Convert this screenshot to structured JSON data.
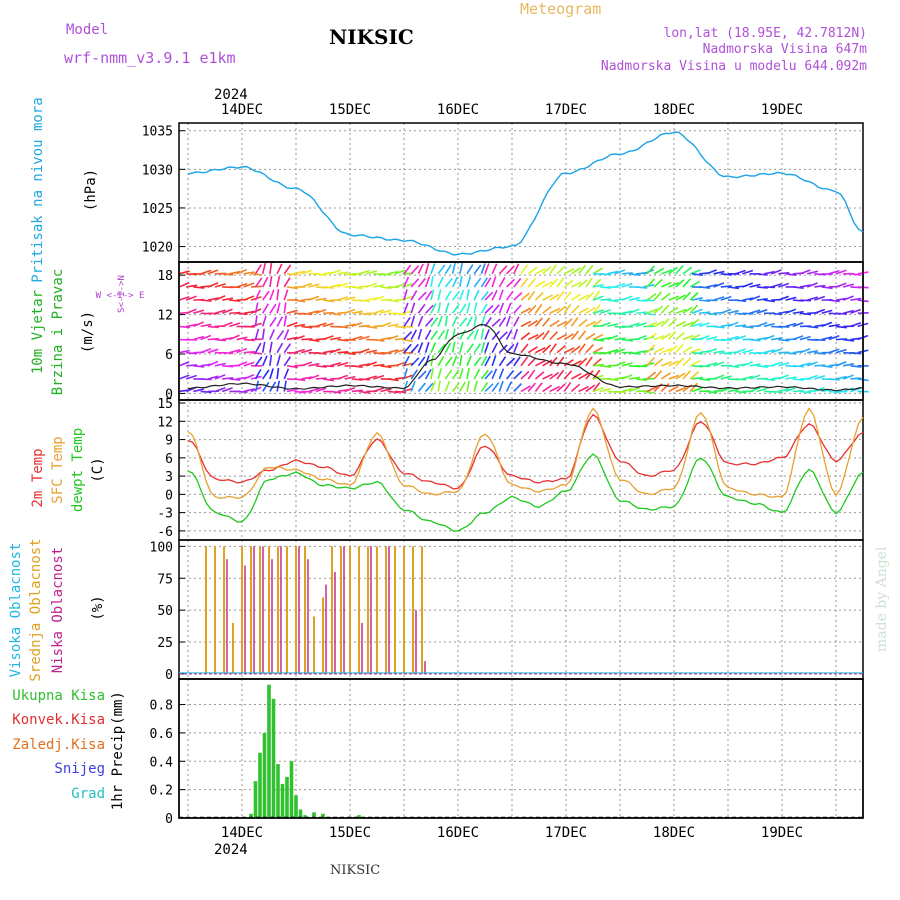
{
  "header": {
    "model_label": "Model",
    "model_name": "wrf-nmm_v3.9.1 e1km",
    "station": "NIKSIC",
    "meteogram": "Meteogram",
    "location": "lon,lat (18.95E, 42.7812N)",
    "altitude": "Nadmorska Visina 647m",
    "model_altitude": "Nadmorska Visina u modelu 644.092m",
    "year": "2024",
    "footer_station": "NIKSIC",
    "watermark": "made by Angel"
  },
  "colors": {
    "pressure": "#1aa3e8",
    "temp2m": "#e83030",
    "sfc_temp": "#e8a030",
    "dewpt": "#20c820",
    "cloud_high": "#20b8e0",
    "cloud_mid": "#e0a020",
    "cloud_low": "#c0208a",
    "precip_total": "#30c030",
    "precip_conv": "#e03030",
    "precip_snow": "#4040e0",
    "precip_grad": "#20c0c0",
    "precip_zaledj": "#e07020",
    "wind_label": "#20b020",
    "wind_dir_label": "#b040d0"
  },
  "chart_data": [
    {
      "type": "line",
      "name": "pressure",
      "ylabel_left": "Pritisak na nivou mora",
      "ylabel_unit": "(hPa)",
      "yticks": [
        1020,
        1025,
        1030,
        1035
      ],
      "ylim": [
        1018,
        1036
      ],
      "x_days": [
        "14DEC",
        "15DEC",
        "16DEC",
        "17DEC",
        "18DEC",
        "19DEC"
      ],
      "x_hours": [
        -12,
        0,
        12,
        24,
        36,
        48,
        60,
        72,
        84,
        96,
        108,
        120,
        132,
        138
      ],
      "values": [
        1029.5,
        1030.3,
        1027.5,
        1021.5,
        1020.8,
        1019.0,
        1020.0,
        1029.5,
        1032.0,
        1034.8,
        1029.0,
        1029.5,
        1027.2,
        1021.8
      ]
    },
    {
      "type": "line",
      "name": "wind",
      "ylabel_left1": "10m Vjetar",
      "ylabel_left2": "Brzina i Pravac",
      "ylabel_unit": "(m/s)",
      "direction_legend": "W <-I-> E",
      "direction_legend2": "S<-I->N",
      "yticks": [
        0,
        6,
        12,
        18
      ],
      "ylim": [
        -1,
        20
      ],
      "x_hours": [
        -12,
        0,
        12,
        24,
        36,
        42,
        48,
        54,
        60,
        72,
        84,
        96,
        108,
        120,
        132,
        138
      ],
      "values": [
        0.8,
        1.5,
        0.7,
        1.2,
        0.8,
        5.0,
        9.0,
        10.5,
        6.0,
        4.5,
        1.0,
        1.2,
        0.8,
        1.0,
        0.5,
        0.8
      ]
    },
    {
      "type": "line",
      "name": "temperature",
      "ylabel_left1": "2m Temp",
      "ylabel_left2": "SFC Temp",
      "ylabel_left3": "dewpt Temp",
      "ylabel_unit": "(C)",
      "yticks": [
        -6,
        -3,
        0,
        3,
        6,
        9,
        12,
        15
      ],
      "ylim": [
        -7.5,
        15.5
      ],
      "x_hours": [
        -12,
        -6,
        0,
        6,
        12,
        18,
        24,
        30,
        36,
        42,
        48,
        54,
        60,
        66,
        72,
        78,
        84,
        90,
        96,
        102,
        108,
        114,
        120,
        126,
        132,
        138
      ],
      "series": [
        {
          "name": "2m Temp",
          "values": [
            9.0,
            2.5,
            2.0,
            4.0,
            5.5,
            4.5,
            3.0,
            9.0,
            3.5,
            2.0,
            1.0,
            8.0,
            3.0,
            2.0,
            2.5,
            13.0,
            5.5,
            3.0,
            4.0,
            12.0,
            5.0,
            5.0,
            6.0,
            11.5,
            5.5,
            10.0
          ]
        },
        {
          "name": "SFC Temp",
          "values": [
            10.5,
            -0.5,
            -0.5,
            4.5,
            4.0,
            2.5,
            1.5,
            10.0,
            1.5,
            0.0,
            0.5,
            10.0,
            1.5,
            0.5,
            1.5,
            14.0,
            2.5,
            0.0,
            1.0,
            13.5,
            1.0,
            0.0,
            -0.5,
            14.0,
            0.0,
            12.5
          ]
        },
        {
          "name": "dewpt Temp",
          "values": [
            4.0,
            -3.0,
            -4.5,
            2.5,
            3.5,
            1.5,
            1.0,
            2.0,
            -2.5,
            -4.5,
            -6.0,
            -3.0,
            -0.5,
            -2.0,
            0.5,
            6.5,
            -1.0,
            -2.5,
            -2.0,
            6.0,
            -0.5,
            -1.5,
            -3.0,
            4.0,
            -3.0,
            3.5
          ]
        }
      ]
    },
    {
      "type": "bar",
      "name": "clouds",
      "ylabel_left1": "Visoka Oblacnost",
      "ylabel_left2": "Srednja Oblacnost",
      "ylabel_left3": "Niska Oblacnost",
      "ylabel_unit": "(%)",
      "yticks": [
        0,
        25,
        50,
        75,
        100
      ],
      "ylim": [
        -4,
        105
      ],
      "x_hours": [
        -8,
        -6,
        -4,
        -2,
        0,
        2,
        4,
        6,
        8,
        10,
        12,
        14,
        16,
        18,
        20,
        22,
        24,
        26,
        28,
        30,
        32,
        34,
        36,
        38,
        40
      ],
      "series": [
        {
          "name": "Srednja Oblacnost",
          "values": [
            100,
            100,
            100,
            40,
            100,
            100,
            100,
            100,
            100,
            100,
            100,
            100,
            45,
            60,
            100,
            100,
            100,
            100,
            100,
            100,
            100,
            100,
            100,
            100,
            100
          ]
        },
        {
          "name": "Niska Oblacnost",
          "values": [
            0,
            0,
            90,
            0,
            85,
            100,
            100,
            90,
            100,
            0,
            100,
            90,
            0,
            70,
            80,
            100,
            0,
            40,
            100,
            0,
            100,
            0,
            0,
            50,
            10
          ]
        }
      ]
    },
    {
      "type": "bar",
      "name": "precipitation",
      "ylabel_left": "1hr Precip",
      "ylabel_unit": "(mm)",
      "legend": [
        "Ukupna Kisa",
        "Konvek.Kisa",
        "Zaledj.Kisa",
        "Snijeg",
        "Grad"
      ],
      "yticks": [
        0,
        0.2,
        0.4,
        0.6,
        0.8
      ],
      "ylim": [
        0,
        0.98
      ],
      "x_days": [
        "14DEC",
        "15DEC",
        "16DEC",
        "17DEC",
        "18DEC",
        "19DEC"
      ],
      "x_hours": [
        2,
        3,
        4,
        5,
        6,
        7,
        8,
        9,
        10,
        11,
        12,
        13,
        14,
        16,
        18,
        24,
        26
      ],
      "values": [
        0.03,
        0.26,
        0.46,
        0.6,
        0.94,
        0.84,
        0.38,
        0.24,
        0.29,
        0.4,
        0.16,
        0.06,
        0.02,
        0.04,
        0.03,
        0.01,
        0.02
      ]
    }
  ]
}
